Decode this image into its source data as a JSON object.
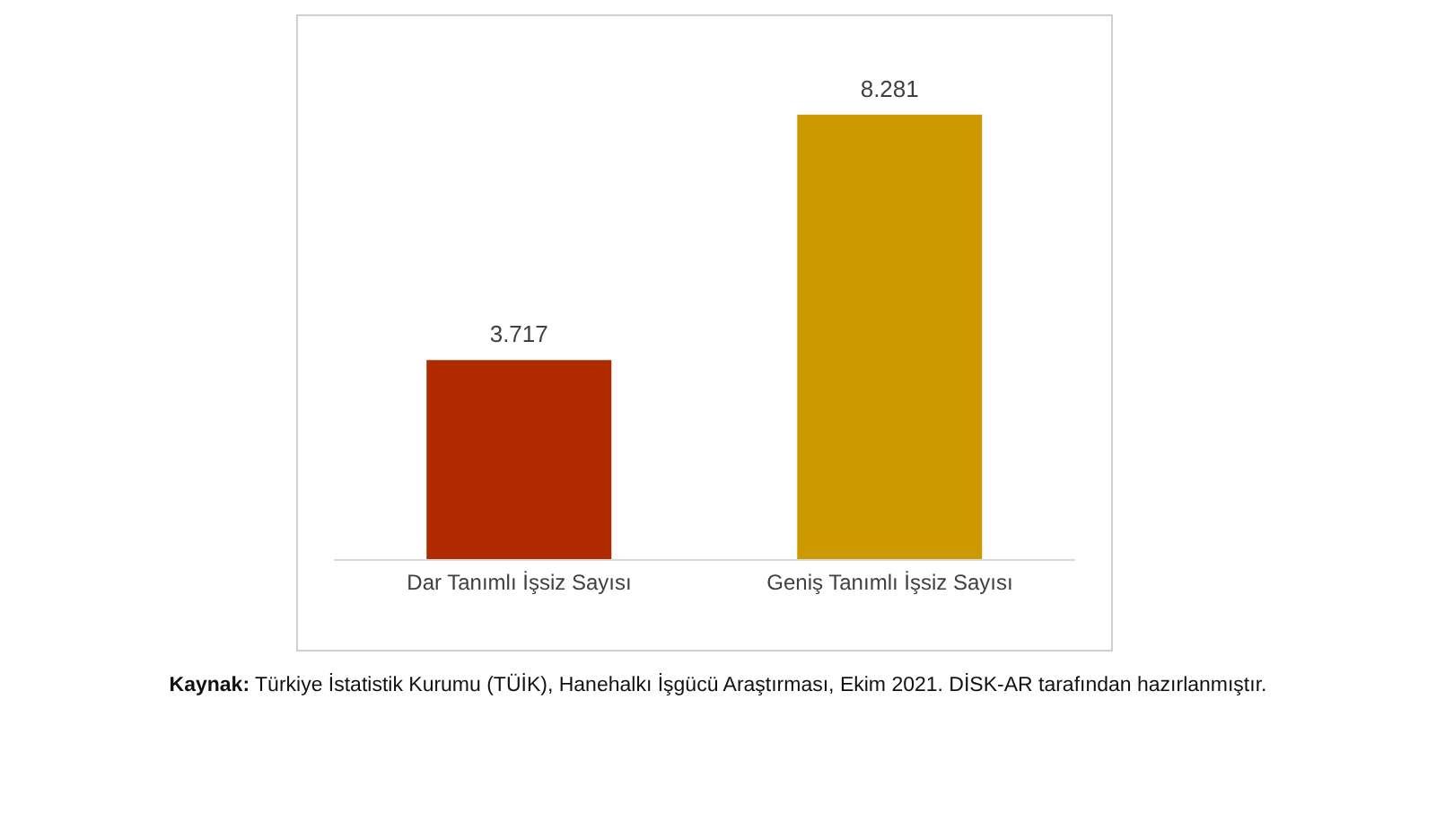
{
  "chart_data": {
    "type": "bar",
    "categories": [
      "Dar Tanımlı İşsiz Sayısı",
      "Geniş Tanımlı İşsiz Sayısı"
    ],
    "values": [
      3717,
      8281
    ],
    "colors": [
      "#b02a00",
      "#cc9900"
    ],
    "value_labels": [
      "3.717",
      "8.281"
    ],
    "tick_labels": "x",
    "grid": false,
    "legend": false,
    "annotations": [
      "Kaynak: Türkiye İstatistik Kurumu (TÜİK), Hanehalkı İşgücü Araştırması, Ekim 2021. DİSK-AR tarafından hazırlanmıştır."
    ]
  }
}
